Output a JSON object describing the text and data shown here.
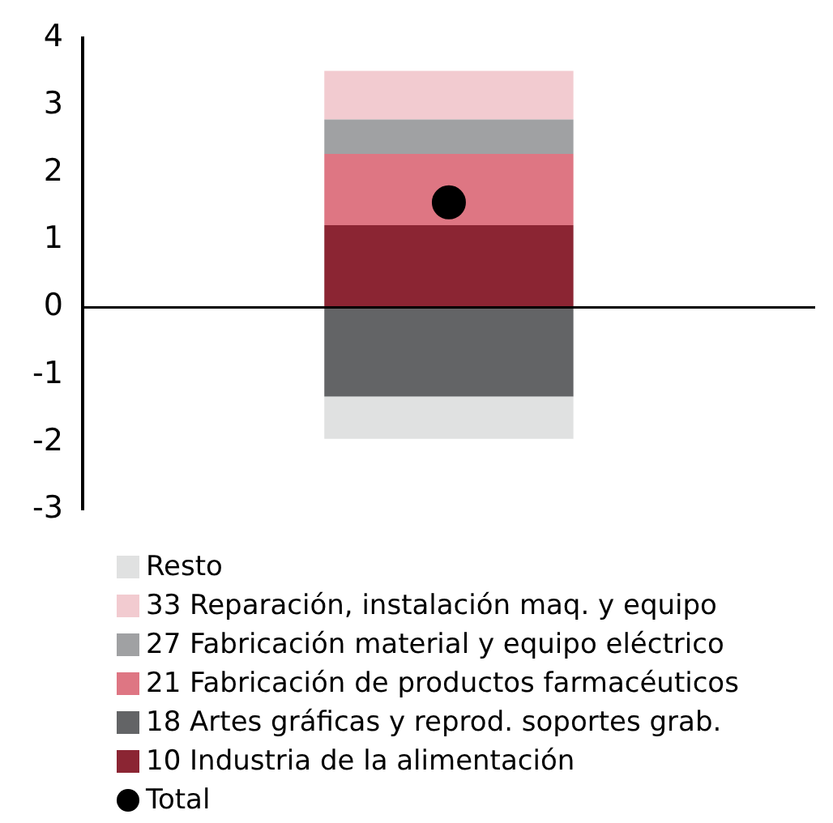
{
  "chart_data": {
    "type": "bar",
    "stacked": true,
    "categories": [
      null
    ],
    "series": [
      {
        "name": "10 Industria de la alimentación",
        "color": "#8b2533",
        "values": [
          1.22
        ]
      },
      {
        "name": "18 Artes gráficas y reprod. soportes grab.",
        "color": "#636466",
        "values": [
          -1.32
        ]
      },
      {
        "name": "21 Fabricación de productos farmacéuticos",
        "color": "#de7683",
        "values": [
          1.06
        ]
      },
      {
        "name": "27 Fabricación material y equipo eléctrico",
        "color": "#a0a1a3",
        "values": [
          0.51
        ]
      },
      {
        "name": "33 Reparación, instalación maq. y equipo",
        "color": "#f2cbd0",
        "values": [
          0.72
        ]
      },
      {
        "name": "Resto",
        "color": "#e0e1e1",
        "values": [
          -0.63
        ]
      },
      {
        "name": "Total",
        "type": "scatter",
        "color": "#000000",
        "values": [
          1.56
        ]
      }
    ],
    "ref_lines": [
      {
        "axis": "y",
        "value": 0,
        "color": "#000000"
      }
    ],
    "ylim": [
      -3,
      4
    ],
    "yticks": [
      -3,
      -2,
      -1,
      0,
      1,
      2,
      3,
      4
    ],
    "grid": false,
    "legend": "bottom",
    "tick_labels": "y",
    "marker": "circle"
  }
}
